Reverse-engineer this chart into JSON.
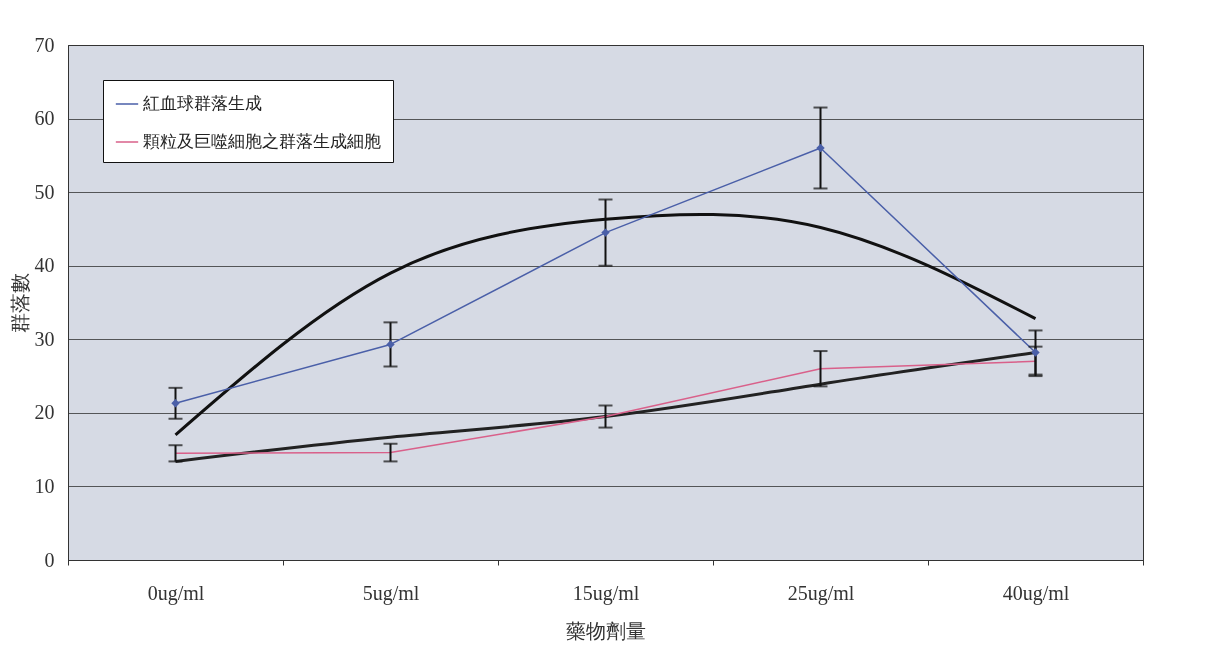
{
  "chart_data": {
    "type": "line",
    "xlabel": "藥物劑量",
    "ylabel": "群落數",
    "categories": [
      "0ug/ml",
      "5ug/ml",
      "15ug/ml",
      "25ug/ml",
      "40ug/ml"
    ],
    "series": [
      {
        "name": "紅血球群落生成",
        "color": "#4a5fa8",
        "marker": "diamond",
        "values": [
          21.3,
          29.3,
          44.5,
          56,
          28.2
        ],
        "errors": [
          2.1,
          3,
          4.5,
          5.5,
          3
        ]
      },
      {
        "name": "顆粒及巨噬細胞之群落生成細胞",
        "color": "#d9608a",
        "marker": "none",
        "values": [
          14.5,
          14.6,
          19.5,
          26,
          27
        ],
        "errors": [
          1.1,
          1.2,
          1.5,
          2.4,
          2
        ]
      },
      {
        "type": "line",
        "color": "#111111",
        "x": [
          "0ug/ml",
          "5ug/ml",
          "15ug/ml",
          "25ug/ml",
          "40ug/ml"
        ],
        "values": [
          17,
          39,
          46.3,
          45.2,
          32.8
        ]
      },
      {
        "type": "line",
        "color": "#222222",
        "x": [
          "0ug/ml",
          "5ug/ml",
          "15ug/ml",
          "25ug/ml",
          "40ug/ml"
        ],
        "values": [
          13.4,
          16.7,
          19.5,
          23.9,
          28.2
        ]
      }
    ],
    "ylim": [
      0,
      70
    ],
    "yticks": [
      0,
      10,
      20,
      30,
      40,
      50,
      60,
      70
    ],
    "grid": "y",
    "legend": "top left"
  }
}
